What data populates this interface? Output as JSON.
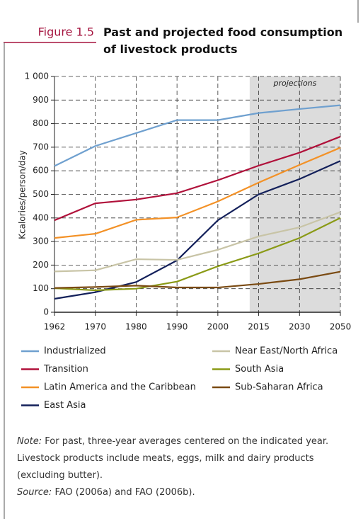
{
  "chart_data": {
    "type": "line",
    "figure_label": "Figure 1.5",
    "title": "Past and projected food consumption of livestock products",
    "ylabel": "Kcalories/person/day",
    "annotation": "projections",
    "categories": [
      "1962",
      "1970",
      "1980",
      "1990",
      "2000",
      "2015",
      "2030",
      "2050"
    ],
    "ylim": [
      0,
      1000
    ],
    "yticks": [
      0,
      100,
      200,
      300,
      400,
      500,
      600,
      700,
      800,
      900,
      {
        "value": 1000,
        "label": "1 000"
      }
    ],
    "grid": true,
    "series": [
      {
        "name": "Industrialized",
        "color": "#6fa0cf",
        "values": [
          620,
          705,
          760,
          815,
          815,
          845,
          862,
          878
        ]
      },
      {
        "name": "Transition",
        "color": "#b0103a",
        "values": [
          390,
          462,
          478,
          505,
          560,
          622,
          677,
          745
        ]
      },
      {
        "name": "Latin America and the Caribbean",
        "color": "#f39126",
        "values": [
          315,
          333,
          392,
          402,
          470,
          550,
          625,
          698
        ]
      },
      {
        "name": "East Asia",
        "color": "#13205a",
        "values": [
          57,
          85,
          128,
          220,
          390,
          500,
          565,
          642
        ]
      },
      {
        "name": "Near East/North Africa",
        "color": "#c8c4a6",
        "values": [
          173,
          178,
          225,
          222,
          265,
          322,
          360,
          425
        ]
      },
      {
        "name": "South Asia",
        "color": "#8a9a16",
        "values": [
          102,
          93,
          100,
          130,
          195,
          250,
          315,
          400
        ]
      },
      {
        "name": "Sub-Saharan Africa",
        "color": "#7a4a12",
        "values": [
          103,
          107,
          113,
          105,
          105,
          120,
          140,
          172
        ]
      }
    ],
    "note_label": "Note:",
    "note": "For past, three-year averages centered on the indicated year. Livestock products include meats, eggs, milk and dairy products (excluding butter).",
    "source_label": "Source:",
    "source": "FAO (2006a) and FAO (2006b)."
  }
}
